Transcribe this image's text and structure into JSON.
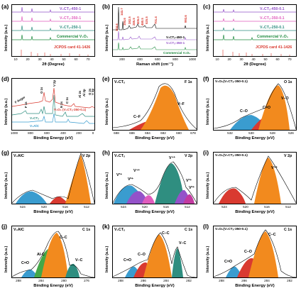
{
  "colors": {
    "orange": "#f28a1e",
    "red": "#d93a30",
    "blue": "#3a9ccf",
    "green": "#44a848",
    "teal": "#2f8e80",
    "purple": "#9452c9",
    "pink": "#e05cbd",
    "black": "#000000",
    "magenta": "#c23aa0",
    "darkgreen": "#1f8a3f"
  },
  "panels": {
    "a": {
      "label": "(a)",
      "ylabel": "Intensity (a.u.)",
      "xlabel": "2θ (Degree)",
      "xticks": [
        "10",
        "20",
        "30",
        "40",
        "50",
        "60",
        "70"
      ],
      "traces": [
        "V₂CTₓ-450-1",
        "V₂CTₓ-350-1",
        "V₂CTₓ-250-1",
        "Commercial V₂O₅",
        "JCPDS card 41-1426"
      ]
    },
    "b": {
      "label": "(b)",
      "ylabel": "Intensity (a.u.)",
      "xlabel": "Raman shift (cm⁻¹)",
      "xticks": [
        "200",
        "400",
        "600",
        "800",
        "1000"
      ],
      "peaks": [
        "143.7",
        "104.6",
        "194.6",
        "282.5",
        "285.5",
        "405.0",
        "480.5",
        "525.5",
        "701.4",
        "993.6"
      ],
      "traces": [
        "V₂CTₓ-450-1",
        "V₂CTₓ-350-1",
        "Commercial V₂O₅"
      ]
    },
    "c": {
      "label": "(c)",
      "ylabel": "Intensity (a.u.)",
      "xlabel": "2θ (Degree)",
      "xticks": [
        "10",
        "20",
        "30",
        "40",
        "50",
        "60",
        "70"
      ],
      "traces": [
        "V₂CTₓ-450-0.1",
        "V₂CTₓ-350-0.1",
        "V₂CTₓ-250-0.1",
        "Commercial V₂O₅",
        "JCPDS card 41-1426"
      ]
    },
    "d": {
      "label": "(d)",
      "ylabel": "Intensity (a.u.)",
      "xlabel": "Binding Energy (eV)",
      "xticks": [
        "1000",
        "800",
        "600",
        "400",
        "200",
        "0"
      ],
      "traces": [
        "V₂O₅ (V₂CTₓ-350-0.1)",
        "V₂CTₓ",
        "V₂AlC"
      ],
      "peak_labels": [
        "F Auger",
        "O 1s",
        "V 2p",
        "F 1s",
        "N 1s",
        "C 1s",
        "Al 2p",
        "Al 2s",
        "O 2s",
        "V 3p"
      ]
    },
    "e": {
      "label": "(e)",
      "title": "V₂CTₓ",
      "core": "F 1s",
      "ylabel": "Intensity (a.u.)",
      "xlabel": "Binding Energy (eV)",
      "xticks": [
        "688",
        "686",
        "684",
        "682",
        "680",
        "678"
      ],
      "components": [
        "C–F",
        "V–F"
      ]
    },
    "f": {
      "label": "(f)",
      "title": "V₂O₅(V₂CTₓ-350-0.1)",
      "core": "O 1s",
      "ylabel": "Intensity (a.u.)",
      "xlabel": "Binding Energy (eV)",
      "xticks": [
        "532",
        "530",
        "528",
        "526"
      ],
      "components": [
        "C–O",
        "C=O",
        "V–O"
      ]
    },
    "g": {
      "label": "(g)",
      "title": "V₂AlC",
      "core": "V 2p",
      "ylabel": "Intensity (a.u.)",
      "xlabel": "Binding Energy (eV)",
      "xticks": [
        "524",
        "520",
        "516",
        "512"
      ]
    },
    "h": {
      "label": "(h)",
      "title": "V₂CTₓ",
      "core": "V 2p",
      "ylabel": "Intensity (a.u.)",
      "xlabel": "Binding Energy (eV)",
      "xticks": [
        "524",
        "520",
        "516",
        "512"
      ],
      "components": [
        "V³⁺",
        "V²⁺",
        "V⁴⁺",
        "V⁴⁺",
        "V³⁺",
        "V²⁺"
      ]
    },
    "i": {
      "label": "(i)",
      "title": "V₂O₅(V₂CTₓ-350-0.1)",
      "core": "V 2p",
      "ylabel": "Intensity (a.u.)",
      "xlabel": "Binding Energy (eV)",
      "xticks": [
        "524",
        "520",
        "516",
        "512"
      ],
      "components": [
        "V⁵⁺"
      ]
    },
    "j": {
      "label": "(j)",
      "title": "V₂AlC",
      "core": "C 1s",
      "ylabel": "Intensity (a.u.)",
      "xlabel": "Binding Energy (eV)",
      "xticks": [
        "288",
        "284",
        "280",
        "276"
      ],
      "components": [
        "C=O",
        "Al-C",
        "C–C",
        "V–C"
      ]
    },
    "k": {
      "label": "(k)",
      "title": "V₂CTₓ",
      "core": "C 1s",
      "ylabel": "Intensity (a.u.)",
      "xlabel": "Binding Energy (eV)",
      "xticks": [
        "288",
        "286",
        "284",
        "282"
      ],
      "components": [
        "C=O",
        "C–O",
        "C–C",
        "V–C"
      ]
    },
    "l": {
      "label": "(l)",
      "title": "V₂O₅(V₂CTₓ-350-0.1)",
      "core": "C 1s",
      "ylabel": "Intensity (a.u.)",
      "xlabel": "Binding Energy (eV)",
      "xticks": [
        "288",
        "286",
        "284",
        "282"
      ],
      "components": [
        "C=O",
        "C–O",
        "C–C"
      ]
    }
  }
}
